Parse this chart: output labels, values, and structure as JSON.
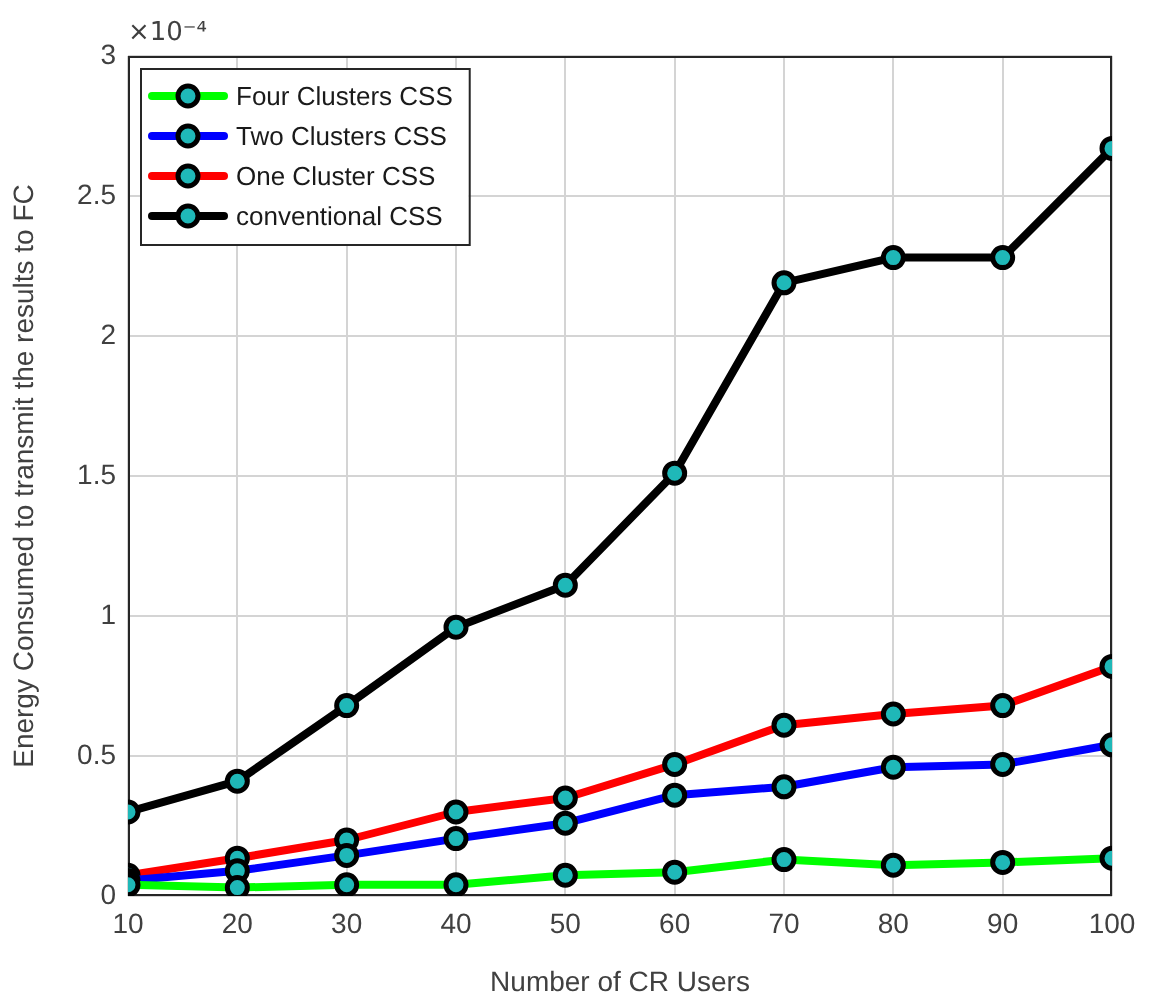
{
  "chart_data": {
    "type": "line",
    "xlabel": "Number of CR Users",
    "ylabel": "Energy Consumed to transmit the results to FC",
    "x": [
      10,
      20,
      30,
      40,
      50,
      60,
      70,
      80,
      90,
      100
    ],
    "series": [
      {
        "name": "Four Clusters CSS",
        "color": "#00ff00",
        "values": [
          0.04,
          0.03,
          0.04,
          0.04,
          0.074,
          0.085,
          0.13,
          0.11,
          0.12,
          0.135
        ]
      },
      {
        "name": "Two Clusters CSS",
        "color": "#0000ff",
        "values": [
          0.055,
          0.09,
          0.145,
          0.205,
          0.26,
          0.36,
          0.39,
          0.46,
          0.47,
          0.54
        ]
      },
      {
        "name": "One Cluster CSS",
        "color": "#ff0000",
        "values": [
          0.074,
          0.135,
          0.2,
          0.3,
          0.35,
          0.47,
          0.61,
          0.65,
          0.68,
          0.82
        ]
      },
      {
        "name": "conventional CSS",
        "color": "#000000",
        "values": [
          0.3,
          0.41,
          0.68,
          0.96,
          1.11,
          1.51,
          2.19,
          2.28,
          2.28,
          2.67
        ]
      }
    ],
    "xlim": [
      10,
      100
    ],
    "xticks": [
      10,
      20,
      30,
      40,
      50,
      60,
      70,
      80,
      90,
      100
    ],
    "ylim": [
      0,
      3
    ],
    "yticks": [
      0,
      0.5,
      1,
      1.5,
      2,
      2.5,
      3
    ],
    "annotations": [
      "×10⁻⁴"
    ],
    "grid": true,
    "legend": "top left",
    "marker": "circle",
    "line_style": "solid"
  }
}
